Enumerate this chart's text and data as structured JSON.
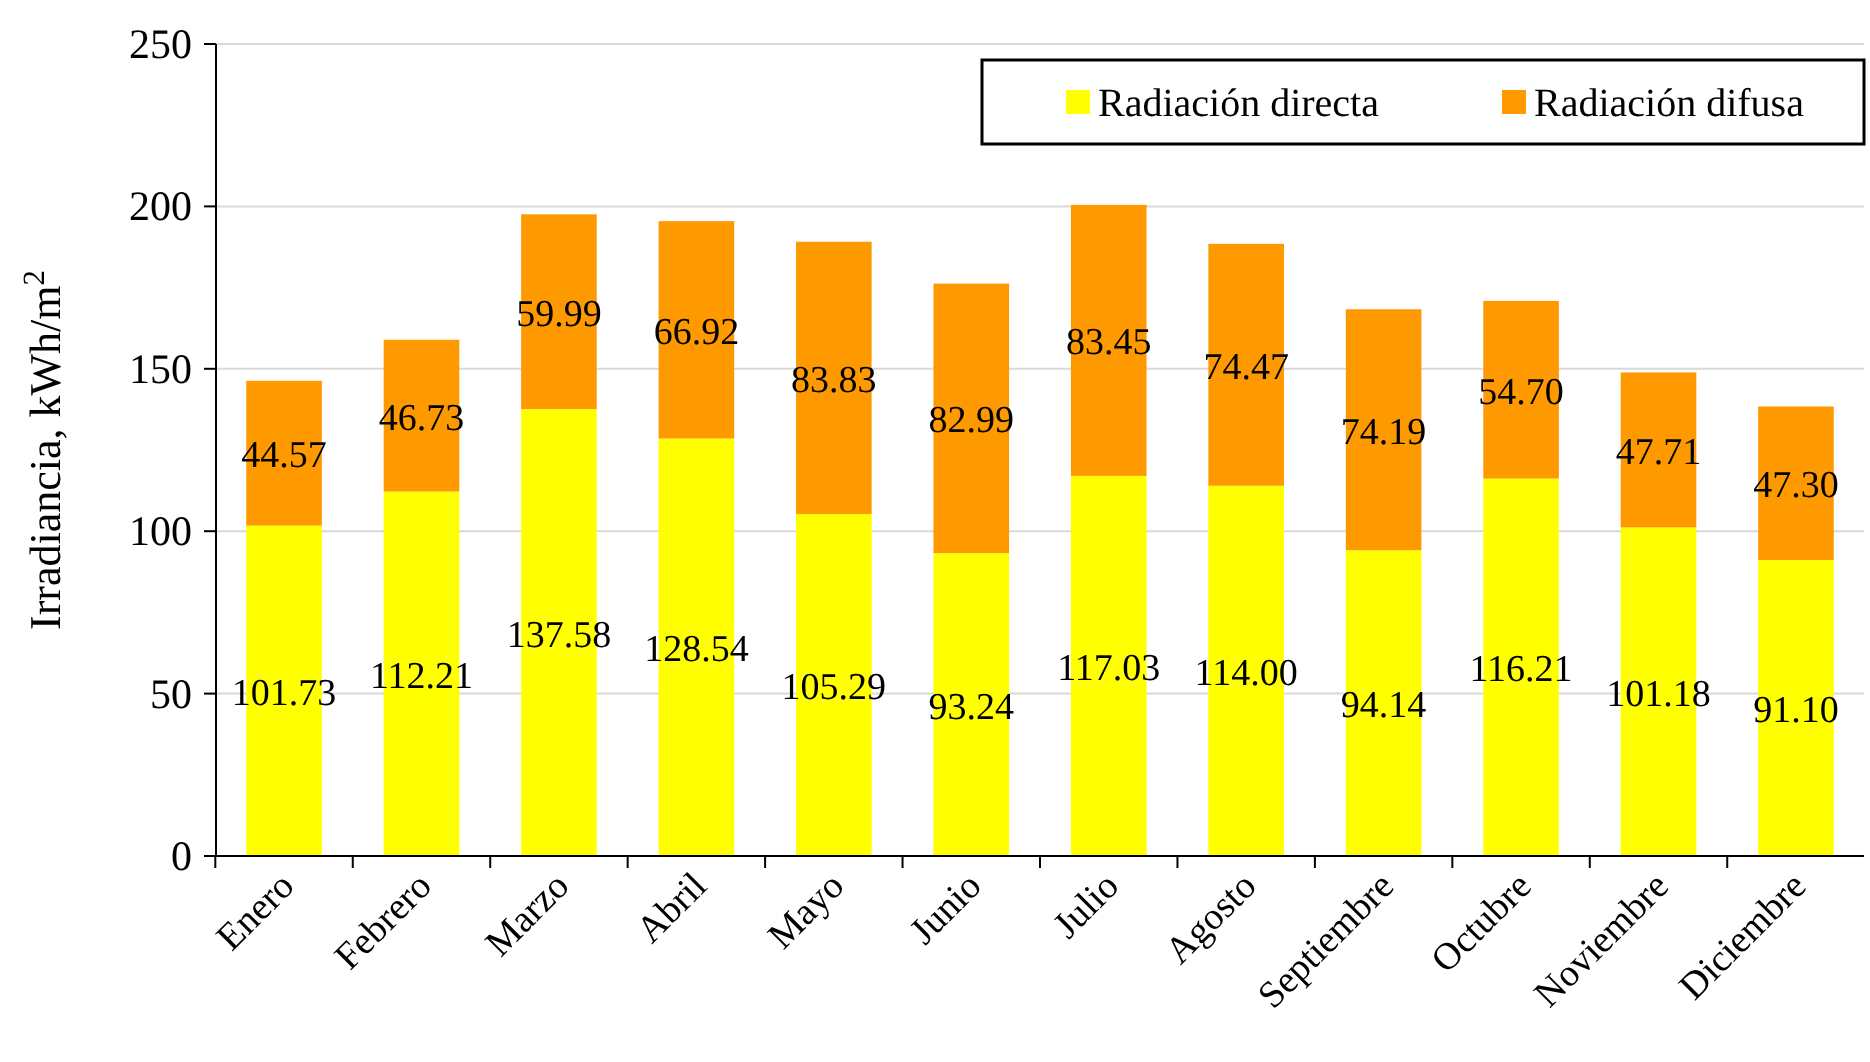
{
  "chart_data": {
    "type": "bar",
    "stacked": true,
    "ylabel": "Irradiancia, kWh/m$^{2}$",
    "categories": [
      "Enero",
      "Febrero",
      "Marzo",
      "Abril",
      "Mayo",
      "Junio",
      "Julio",
      "Agosto",
      "Septiembre",
      "Octubre",
      "Noviembre",
      "Diciembre"
    ],
    "series": [
      {
        "name": "Radiación directa",
        "color": "#ffff00",
        "values": [
          101.73,
          112.21,
          137.58,
          128.54,
          105.29,
          93.24,
          117.03,
          114.0,
          94.14,
          116.21,
          101.18,
          91.1
        ],
        "value_labels": [
          "101.73",
          "112.21",
          "137.58",
          "128.54",
          "105.29",
          "93.24",
          "117.03",
          "114.00",
          "94.14",
          "116.21",
          "101.18",
          "91.10"
        ]
      },
      {
        "name": "Radiación difusa",
        "color": "#ff9900",
        "values": [
          44.57,
          46.73,
          59.99,
          66.92,
          83.83,
          82.99,
          83.45,
          74.47,
          74.19,
          54.7,
          47.71,
          47.3
        ],
        "value_labels": [
          "44.57",
          "46.73",
          "59.99",
          "66.92",
          "83.83",
          "82.99",
          "83.45",
          "74.47",
          "74.19",
          "54.70",
          "47.71",
          "47.30"
        ]
      }
    ],
    "ylim": [
      0,
      250
    ],
    "yticks": [
      0,
      50,
      100,
      150,
      200,
      250
    ],
    "grid": "y",
    "legend": "top right"
  }
}
